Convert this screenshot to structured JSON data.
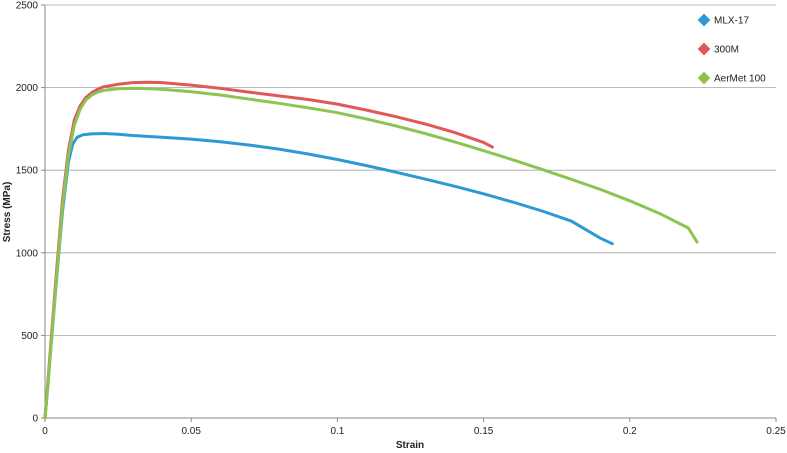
{
  "chart_data": {
    "type": "line",
    "title": "",
    "xlabel": "Strain",
    "ylabel": "Stress (MPa)",
    "xlim": [
      0,
      0.25
    ],
    "ylim": [
      0,
      2500
    ],
    "x_ticks": [
      0,
      0.05,
      0.1,
      0.15,
      0.2,
      0.25
    ],
    "x_tick_labels": [
      "0",
      "0.05",
      "0.1",
      "0.15",
      "0.2",
      "0.25"
    ],
    "y_ticks": [
      0,
      500,
      1000,
      1500,
      2000,
      2500
    ],
    "y_tick_labels": [
      "0",
      "500",
      "1000",
      "1500",
      "2000",
      "2500"
    ],
    "grid": "horizontal",
    "legend_position": "top-right",
    "series": [
      {
        "name": "MLX-17",
        "color": "#2E9AD4",
        "marker": "diamond",
        "x": [
          0,
          0.001,
          0.002,
          0.004,
          0.006,
          0.008,
          0.0095,
          0.011,
          0.013,
          0.016,
          0.02,
          0.025,
          0.03,
          0.04,
          0.05,
          0.06,
          0.07,
          0.08,
          0.09,
          0.1,
          0.11,
          0.12,
          0.13,
          0.14,
          0.15,
          0.16,
          0.17,
          0.18,
          0.19,
          0.194
        ],
        "y": [
          0,
          200,
          420,
          850,
          1250,
          1550,
          1660,
          1700,
          1715,
          1720,
          1722,
          1718,
          1710,
          1700,
          1688,
          1672,
          1652,
          1628,
          1598,
          1565,
          1528,
          1488,
          1446,
          1403,
          1357,
          1307,
          1253,
          1192,
          1088,
          1055
        ]
      },
      {
        "name": "300M",
        "color": "#E05858",
        "marker": "diamond",
        "x": [
          0,
          0.001,
          0.002,
          0.004,
          0.006,
          0.008,
          0.01,
          0.012,
          0.014,
          0.016,
          0.018,
          0.02,
          0.025,
          0.03,
          0.035,
          0.04,
          0.05,
          0.06,
          0.07,
          0.08,
          0.09,
          0.1,
          0.11,
          0.12,
          0.13,
          0.14,
          0.15,
          0.153
        ],
        "y": [
          0,
          220,
          450,
          900,
          1320,
          1620,
          1800,
          1890,
          1940,
          1970,
          1990,
          2005,
          2020,
          2030,
          2032,
          2030,
          2015,
          1995,
          1972,
          1950,
          1928,
          1900,
          1864,
          1824,
          1780,
          1729,
          1668,
          1640
        ]
      },
      {
        "name": "AerMet 100",
        "color": "#8DC451",
        "marker": "diamond",
        "x": [
          0,
          0.001,
          0.002,
          0.004,
          0.006,
          0.008,
          0.01,
          0.012,
          0.014,
          0.016,
          0.018,
          0.02,
          0.025,
          0.03,
          0.035,
          0.04,
          0.05,
          0.06,
          0.07,
          0.08,
          0.09,
          0.1,
          0.11,
          0.12,
          0.13,
          0.14,
          0.15,
          0.16,
          0.17,
          0.18,
          0.19,
          0.2,
          0.21,
          0.22,
          0.223
        ],
        "y": [
          0,
          200,
          420,
          860,
          1280,
          1590,
          1770,
          1870,
          1925,
          1955,
          1972,
          1983,
          1993,
          1995,
          1994,
          1990,
          1975,
          1955,
          1930,
          1905,
          1878,
          1848,
          1810,
          1768,
          1722,
          1672,
          1618,
          1563,
          1505,
          1445,
          1383,
          1315,
          1240,
          1150,
          1065
        ]
      }
    ]
  }
}
